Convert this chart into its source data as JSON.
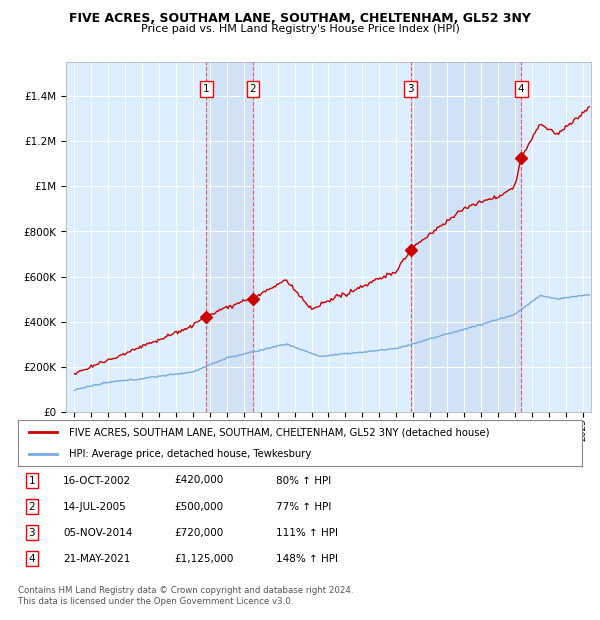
{
  "title": "FIVE ACRES, SOUTHAM LANE, SOUTHAM, CHELTENHAM, GL52 3NY",
  "subtitle": "Price paid vs. HM Land Registry's House Price Index (HPI)",
  "legend_label_red": "FIVE ACRES, SOUTHAM LANE, SOUTHAM, CHELTENHAM, GL52 3NY (detached house)",
  "legend_label_blue": "HPI: Average price, detached house, Tewkesbury",
  "footer1": "Contains HM Land Registry data © Crown copyright and database right 2024.",
  "footer2": "This data is licensed under the Open Government Licence v3.0.",
  "transactions": [
    {
      "num": 1,
      "date": "16-OCT-2002",
      "price": "£420,000",
      "pct": "80%",
      "year": 2002.79,
      "price_val": 420000
    },
    {
      "num": 2,
      "date": "14-JUL-2005",
      "price": "£500,000",
      "pct": "77%",
      "year": 2005.54,
      "price_val": 500000
    },
    {
      "num": 3,
      "date": "05-NOV-2014",
      "price": "£720,000",
      "pct": "111%",
      "year": 2014.85,
      "price_val": 720000
    },
    {
      "num": 4,
      "date": "21-MAY-2021",
      "price": "£1,125,000",
      "pct": "148%",
      "year": 2021.38,
      "price_val": 1125000
    }
  ],
  "hpi_color": "#7aaadd",
  "price_color": "#cc0000",
  "background_color": "#ddeeff",
  "shade_color": "#ccddf5",
  "ylim": [
    0,
    1550000
  ],
  "xlim": [
    1994.5,
    2025.5
  ]
}
